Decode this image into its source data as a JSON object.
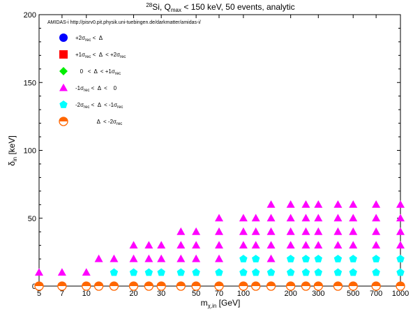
{
  "chart_data": {
    "type": "scatter",
    "title_parts": {
      "sup": "28",
      "a": "Si, Q",
      "sub": "max",
      "b": " < 150 keV, 50 events, analytic"
    },
    "annotation": "AMIDAS-i   http://pisrv0.pit.physik.uni-tuebingen.de/darkmatter/amidas-i/",
    "xlabel_parts": {
      "a": "m",
      "sub": "χ,in",
      "b": " [GeV]"
    },
    "ylabel_parts": {
      "a": "δ",
      "sub": "in",
      "b": " [keV]"
    },
    "x_scale": "log",
    "xlim": [
      5,
      1000
    ],
    "ylim": [
      0,
      200
    ],
    "x_ticks": [
      5,
      7,
      10,
      20,
      30,
      50,
      70,
      100,
      200,
      300,
      500,
      700,
      1000
    ],
    "x_tick_labels": [
      "5",
      "7",
      "10",
      "20",
      "30",
      "50",
      "70",
      "100",
      "200",
      "300",
      "500",
      "700",
      "1000"
    ],
    "y_ticks": [
      0,
      50,
      100,
      150,
      200
    ],
    "y_tick_labels": [
      "0",
      "50",
      "100",
      "150",
      "200"
    ],
    "grid": false,
    "legend_placement": "top-left",
    "series": [
      {
        "key": "s1",
        "marker": "circle",
        "color": "#0000ff",
        "legend": {
          "a": "+2σ",
          "sub": "rec",
          "b": " <  Δ"
        },
        "points": []
      },
      {
        "key": "s2",
        "marker": "square",
        "color": "#ff0000",
        "legend": {
          "a": "+1σ",
          "sub": "rec",
          "b": " <  Δ  < +2σ",
          "sub2": "rec"
        },
        "points": []
      },
      {
        "key": "s3",
        "marker": "diamond",
        "color": "#00ee00",
        "legend": {
          "a": "   0   <  Δ  < +1σ",
          "sub": "rec"
        },
        "points": []
      },
      {
        "key": "s4",
        "marker": "triangle",
        "color": "#ff00ff",
        "legend": {
          "a": "-1σ",
          "sub": "rec",
          "b": " <  Δ  <    0"
        },
        "points": [
          [
            5,
            10
          ],
          [
            7,
            10
          ],
          [
            10,
            10
          ],
          [
            12,
            20
          ],
          [
            15,
            20
          ],
          [
            20,
            20
          ],
          [
            20,
            30
          ],
          [
            25,
            20
          ],
          [
            25,
            30
          ],
          [
            30,
            20
          ],
          [
            30,
            30
          ],
          [
            40,
            20
          ],
          [
            40,
            30
          ],
          [
            40,
            40
          ],
          [
            50,
            20
          ],
          [
            50,
            30
          ],
          [
            50,
            40
          ],
          [
            70,
            20
          ],
          [
            70,
            30
          ],
          [
            70,
            40
          ],
          [
            70,
            50
          ],
          [
            100,
            30
          ],
          [
            100,
            40
          ],
          [
            100,
            50
          ],
          [
            120,
            30
          ],
          [
            120,
            40
          ],
          [
            120,
            50
          ],
          [
            150,
            20
          ],
          [
            150,
            30
          ],
          [
            150,
            40
          ],
          [
            150,
            50
          ],
          [
            150,
            60
          ],
          [
            200,
            30
          ],
          [
            200,
            40
          ],
          [
            200,
            50
          ],
          [
            200,
            60
          ],
          [
            250,
            30
          ],
          [
            250,
            40
          ],
          [
            250,
            50
          ],
          [
            250,
            60
          ],
          [
            300,
            30
          ],
          [
            300,
            40
          ],
          [
            300,
            50
          ],
          [
            300,
            60
          ],
          [
            400,
            30
          ],
          [
            400,
            40
          ],
          [
            400,
            50
          ],
          [
            400,
            60
          ],
          [
            500,
            30
          ],
          [
            500,
            40
          ],
          [
            500,
            50
          ],
          [
            500,
            60
          ],
          [
            700,
            30
          ],
          [
            700,
            40
          ],
          [
            700,
            50
          ],
          [
            700,
            60
          ],
          [
            1000,
            30
          ],
          [
            1000,
            40
          ],
          [
            1000,
            50
          ],
          [
            1000,
            60
          ]
        ]
      },
      {
        "key": "s5",
        "marker": "pentagon",
        "color": "#00ffff",
        "legend": {
          "a": "-2σ",
          "sub": "rec",
          "b": " <  Δ  < -1σ",
          "sub2": "rec"
        },
        "points": [
          [
            15,
            10
          ],
          [
            20,
            10
          ],
          [
            25,
            10
          ],
          [
            30,
            10
          ],
          [
            40,
            10
          ],
          [
            50,
            10
          ],
          [
            70,
            10
          ],
          [
            100,
            10
          ],
          [
            100,
            20
          ],
          [
            120,
            10
          ],
          [
            120,
            20
          ],
          [
            150,
            10
          ],
          [
            200,
            10
          ],
          [
            200,
            20
          ],
          [
            250,
            10
          ],
          [
            250,
            20
          ],
          [
            300,
            10
          ],
          [
            300,
            20
          ],
          [
            400,
            10
          ],
          [
            400,
            20
          ],
          [
            500,
            10
          ],
          [
            500,
            20
          ],
          [
            700,
            10
          ],
          [
            700,
            20
          ],
          [
            1000,
            10
          ],
          [
            1000,
            20
          ]
        ]
      },
      {
        "key": "s6",
        "marker": "half-circle",
        "color": "#ff6600",
        "legend": {
          "a": "              Δ  < -2σ",
          "sub": "rec"
        },
        "points": [
          [
            5,
            0
          ],
          [
            7,
            0
          ],
          [
            10,
            0
          ],
          [
            12,
            0
          ],
          [
            15,
            0
          ],
          [
            20,
            0
          ],
          [
            25,
            0
          ],
          [
            30,
            0
          ],
          [
            40,
            0
          ],
          [
            50,
            0
          ],
          [
            70,
            0
          ],
          [
            100,
            0
          ],
          [
            120,
            0
          ],
          [
            150,
            0
          ],
          [
            200,
            0
          ],
          [
            250,
            0
          ],
          [
            300,
            0
          ],
          [
            400,
            0
          ],
          [
            500,
            0
          ],
          [
            700,
            0
          ],
          [
            1000,
            0
          ]
        ]
      }
    ]
  }
}
